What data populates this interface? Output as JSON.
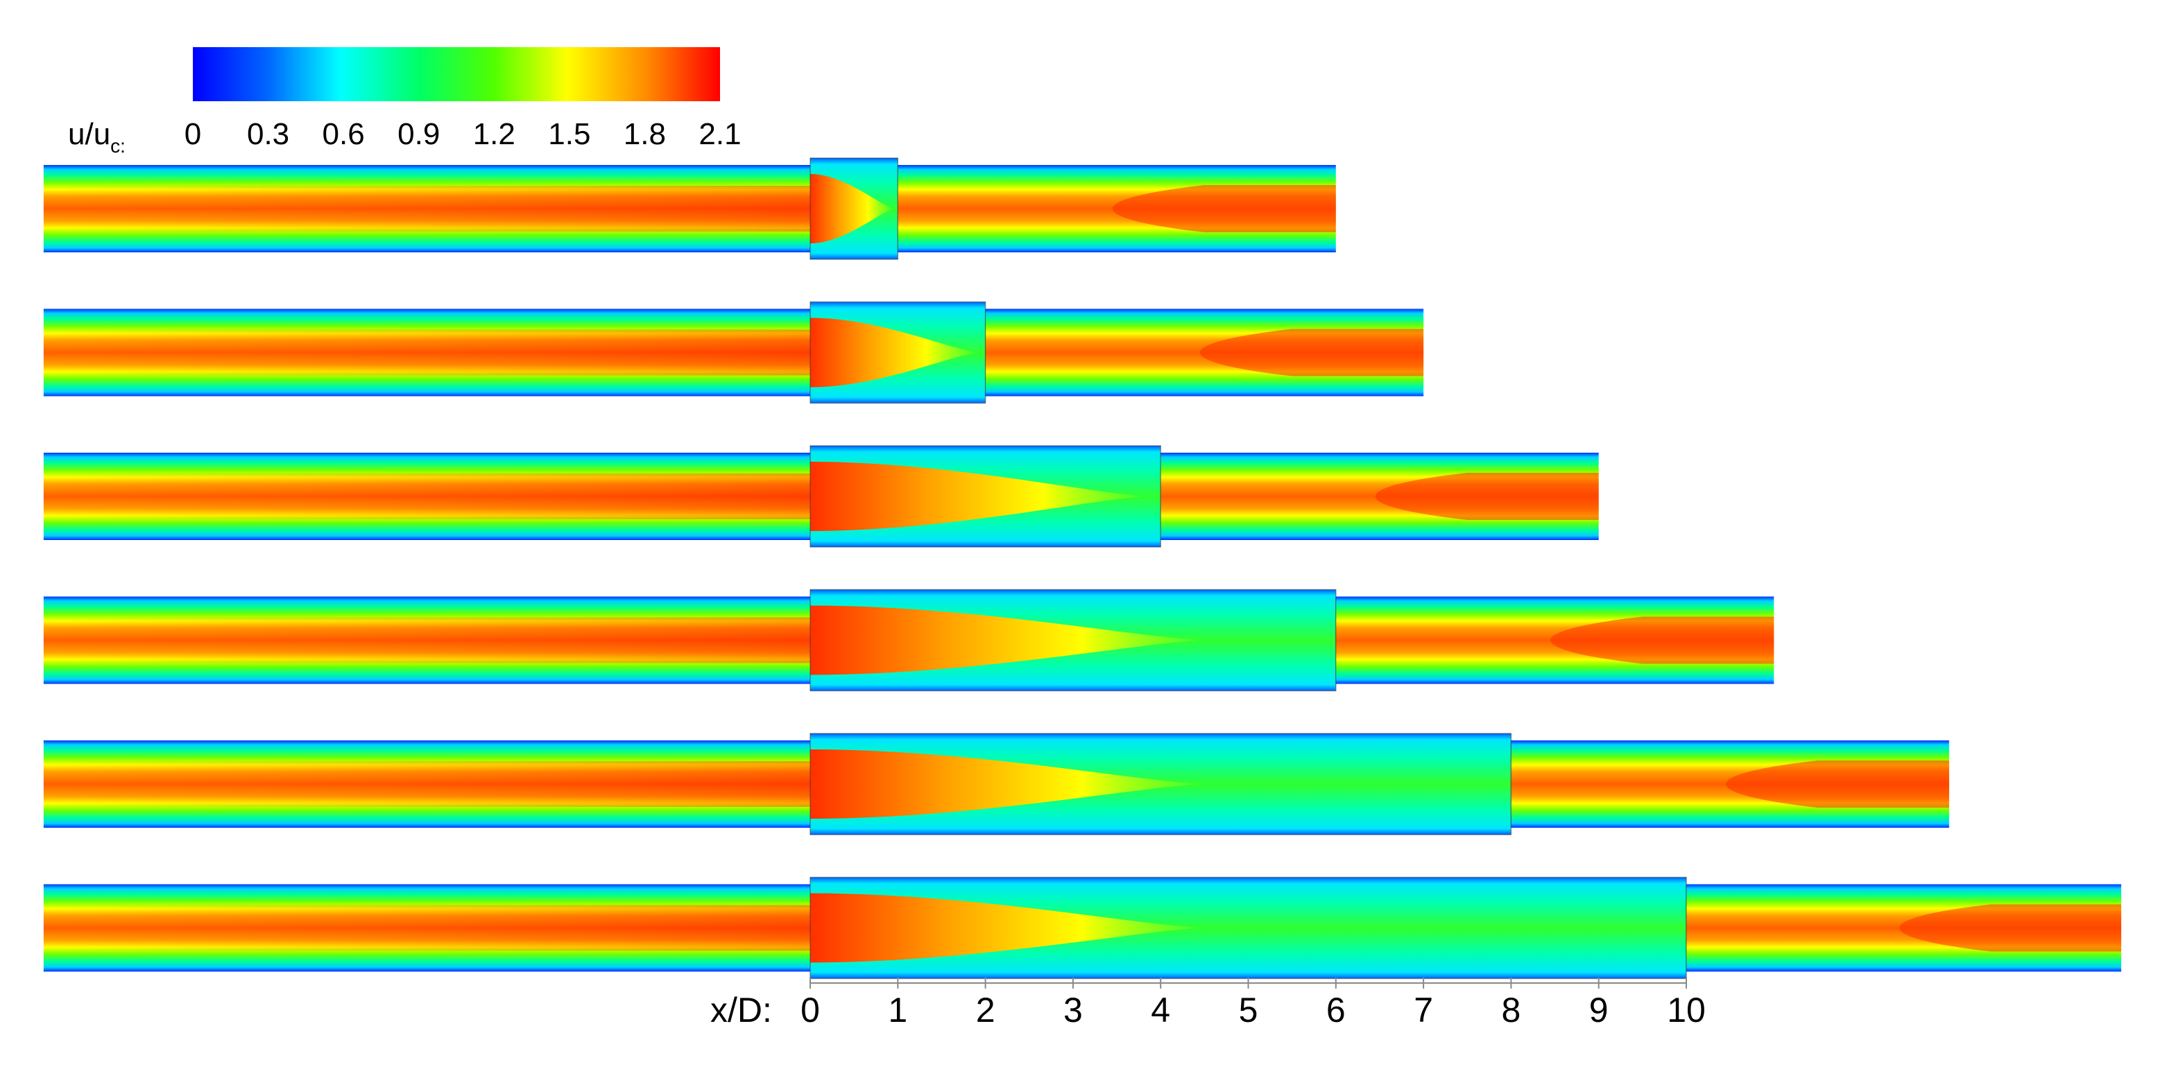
{
  "colorbar": {
    "label_main": "u/u",
    "label_sub": "c:",
    "ticks": [
      "0",
      "0.3",
      "0.6",
      "0.9",
      "1.2",
      "1.5",
      "1.8",
      "2.1"
    ],
    "range": [
      0,
      2.1
    ],
    "colors": [
      "#0000ff",
      "#00c8ff",
      "#00ffd2",
      "#00ff00",
      "#b4ff00",
      "#ffff00",
      "#ff9600",
      "#ff0000"
    ]
  },
  "x_axis": {
    "label": "x/D:",
    "ticks": [
      "0",
      "1",
      "2",
      "3",
      "4",
      "5",
      "6",
      "7",
      "8",
      "9",
      "10"
    ]
  },
  "cases": [
    {
      "expansion_start": 0,
      "expansion_end": 1,
      "outlet_end": 6
    },
    {
      "expansion_start": 0,
      "expansion_end": 2,
      "outlet_end": 7
    },
    {
      "expansion_start": 0,
      "expansion_end": 4,
      "outlet_end": 9
    },
    {
      "expansion_start": 0,
      "expansion_end": 6,
      "outlet_end": 11
    },
    {
      "expansion_start": 0,
      "expansion_end": 8,
      "outlet_end": 13
    },
    {
      "expansion_start": 0,
      "expansion_end": 10,
      "outlet_end": 15
    }
  ],
  "inlet_start": -8.75
}
